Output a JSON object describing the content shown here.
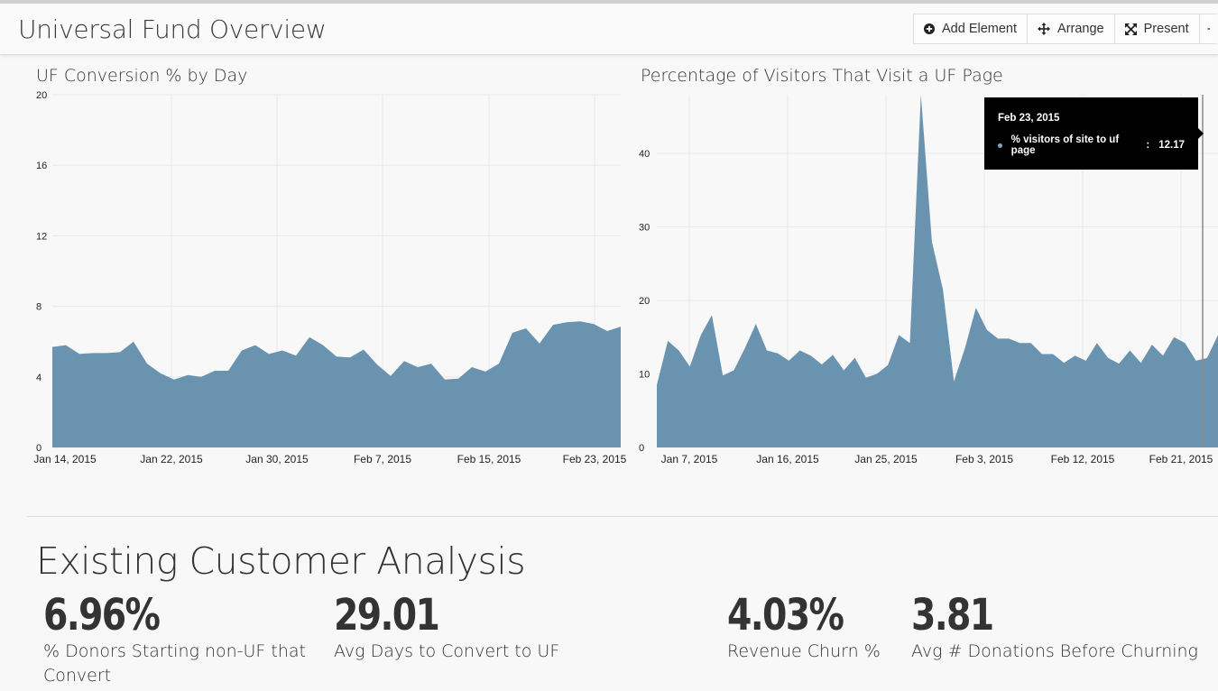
{
  "header": {
    "title": "Universal Fund Overview",
    "toolbar": [
      {
        "label": "Add Element",
        "icon": "plus-circle-icon"
      },
      {
        "label": "Arrange",
        "icon": "move-arrows-icon"
      },
      {
        "label": "Present",
        "icon": "expand-icon"
      }
    ]
  },
  "colors": {
    "area_fill": "#6a93b0",
    "grid": "#e8e8e8",
    "tooltip_bg": "#000000"
  },
  "chart_data": [
    {
      "type": "area",
      "title": "UF Conversion % by Day",
      "xlabel": "",
      "ylabel": "",
      "ylim": [
        0,
        20
      ],
      "yticks": [
        "0",
        "4",
        "8",
        "12",
        "16",
        "20"
      ],
      "xticks": [
        "Jan 14, 2015",
        "Jan 22, 2015",
        "Jan 30, 2015",
        "Feb 7, 2015",
        "Feb 15, 2015",
        "Feb 23, 2015"
      ],
      "grid": true,
      "x": [
        "Jan 14, 2015",
        "Jan 15, 2015",
        "Jan 16, 2015",
        "Jan 17, 2015",
        "Jan 18, 2015",
        "Jan 19, 2015",
        "Jan 20, 2015",
        "Jan 21, 2015",
        "Jan 22, 2015",
        "Jan 23, 2015",
        "Jan 24, 2015",
        "Jan 25, 2015",
        "Jan 26, 2015",
        "Jan 27, 2015",
        "Jan 28, 2015",
        "Jan 29, 2015",
        "Jan 30, 2015",
        "Jan 31, 2015",
        "Feb 1, 2015",
        "Feb 2, 2015",
        "Feb 3, 2015",
        "Feb 4, 2015",
        "Feb 5, 2015",
        "Feb 6, 2015",
        "Feb 7, 2015",
        "Feb 8, 2015",
        "Feb 9, 2015",
        "Feb 10, 2015",
        "Feb 11, 2015",
        "Feb 12, 2015",
        "Feb 13, 2015",
        "Feb 14, 2015",
        "Feb 15, 2015",
        "Feb 16, 2015",
        "Feb 17, 2015",
        "Feb 18, 2015",
        "Feb 19, 2015",
        "Feb 20, 2015",
        "Feb 21, 2015",
        "Feb 22, 2015",
        "Feb 23, 2015",
        "Feb 24, 2015",
        "Feb 25, 2015"
      ],
      "series": [
        {
          "values": [
            5.7,
            5.8,
            5.3,
            5.35,
            5.35,
            5.4,
            6.0,
            4.75,
            4.2,
            3.85,
            4.1,
            4.0,
            4.35,
            4.35,
            5.5,
            5.8,
            5.3,
            5.5,
            5.2,
            6.25,
            5.8,
            5.15,
            5.1,
            5.55,
            4.7,
            4.05,
            4.9,
            4.55,
            4.75,
            3.85,
            3.9,
            4.55,
            4.3,
            4.75,
            6.5,
            6.75,
            5.9,
            6.95,
            7.1,
            7.15,
            7.0,
            6.6,
            6.85
          ]
        }
      ]
    },
    {
      "type": "area",
      "title": "Percentage of Visitors That Visit a UF Page",
      "xlabel": "",
      "ylabel": "",
      "ylim": [
        0,
        48
      ],
      "yticks": [
        "0",
        "10",
        "20",
        "30",
        "40"
      ],
      "xticks": [
        "Jan 7, 2015",
        "Jan 16, 2015",
        "Jan 25, 2015",
        "Feb 3, 2015",
        "Feb 12, 2015",
        "Feb 21, 2015"
      ],
      "grid": true,
      "x_start": "Jan 4, 2015",
      "series": [
        {
          "name": "% visitors of site to uf page",
          "values": [
            8.5,
            14.5,
            13.2,
            11.0,
            15.3,
            18.0,
            9.8,
            10.5,
            13.5,
            16.8,
            13.2,
            12.8,
            11.8,
            13.2,
            12.5,
            11.3,
            12.6,
            10.5,
            12.2,
            9.5,
            10.0,
            11.2,
            15.3,
            14.2,
            48.0,
            28.0,
            21.5,
            9.0,
            13.5,
            19.0,
            16.0,
            14.8,
            14.8,
            14.2,
            14.2,
            12.7,
            12.7,
            11.5,
            12.5,
            11.8,
            14.2,
            12.2,
            11.4,
            13.2,
            11.5,
            14.0,
            12.5,
            15.0,
            14.2,
            11.8,
            12.17,
            15.3
          ]
        }
      ],
      "tooltip": {
        "date": "Feb 23, 2015",
        "series": "% visitors of site to uf page",
        "separator": ":",
        "value": "12.17"
      }
    }
  ],
  "section": {
    "title": "Existing Customer Analysis"
  },
  "metrics": [
    {
      "value": "6.96%",
      "label": "% Donors Starting non-UF that Convert"
    },
    {
      "value": "29.01",
      "label": "Avg Days to Convert to UF"
    },
    {
      "value": "4.03%",
      "label": "Revenue Churn %"
    },
    {
      "value": "3.81",
      "label": "Avg # Donations Before Churning"
    }
  ]
}
